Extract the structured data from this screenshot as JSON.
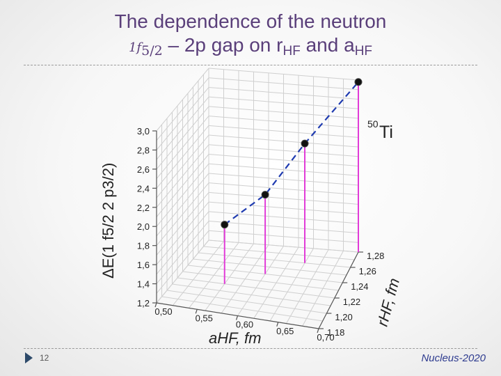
{
  "slide": {
    "title_line1": "The dependence of the neutron",
    "title_level": "1f",
    "title_level_sub": "5/2",
    "title_mid": " – 2p gap on r",
    "title_sub1": "HF",
    "title_and": " and a",
    "title_sub2": "HF",
    "slide_number": "12",
    "footer": "Nucleus-2020"
  },
  "colors": {
    "title": "#5a3f7a",
    "stem": "#e23ad8",
    "fit_line": "#1f3bb0",
    "point": "#111111"
  },
  "chart_data": {
    "type": "scatter",
    "title": "",
    "nucleus_label_mass": "50",
    "nucleus_label_symbol": "Ti",
    "zlabel": "ΔE(1 f5/2 2 p3/2)",
    "xlabel": "aHF, fm",
    "ylabel": "rHF, fm",
    "z_ticks": [
      "1,2",
      "1,4",
      "1,6",
      "1,8",
      "2,0",
      "2,2",
      "2,4",
      "2,6",
      "2,8",
      "3,0"
    ],
    "x_ticks": [
      "0,50",
      "0,55",
      "0,60",
      "0,65",
      "0,70"
    ],
    "y_ticks": [
      "1,18",
      "1,20",
      "1,22",
      "1,24",
      "1,26",
      "1,28"
    ],
    "zlim": [
      1.2,
      3.0
    ],
    "xlim": [
      0.5,
      0.7
    ],
    "ylim": [
      1.18,
      1.28
    ],
    "points": [
      {
        "a": 0.56,
        "r": 1.22,
        "dE": 1.82
      },
      {
        "a": 0.6,
        "r": 1.24,
        "dE": 2.03
      },
      {
        "a": 0.64,
        "r": 1.26,
        "dE": 2.45
      },
      {
        "a": 0.7,
        "r": 1.28,
        "dE": 2.98
      }
    ]
  }
}
